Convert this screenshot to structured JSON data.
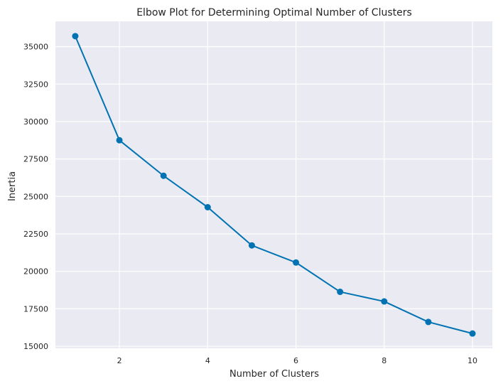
{
  "chart_data": {
    "type": "line",
    "title": "Elbow Plot for Determining Optimal Number of Clusters",
    "xlabel": "Number of Clusters",
    "ylabel": "Inertia",
    "x": [
      1,
      2,
      3,
      4,
      5,
      6,
      7,
      8,
      9,
      10
    ],
    "series": [
      {
        "values": [
          35700,
          28750,
          26380,
          24280,
          21730,
          20590,
          18630,
          17990,
          16620,
          15850
        ]
      }
    ],
    "xlim": [
      0.55,
      10.45
    ],
    "ylim": [
      14860,
      36690
    ],
    "xticks": [
      2,
      4,
      6,
      8,
      10
    ],
    "yticks": [
      15000,
      17500,
      20000,
      22500,
      25000,
      27500,
      30000,
      32500,
      35000
    ],
    "grid": true,
    "markers": true,
    "colors": {
      "line": "#0173b2",
      "plot_bg": "#eaeaf2",
      "grid": "#ffffff",
      "text": "#262626"
    }
  }
}
